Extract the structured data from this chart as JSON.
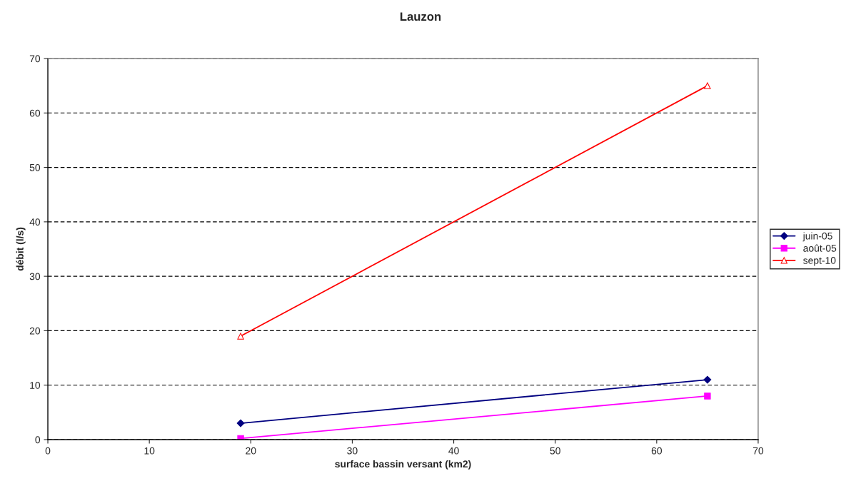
{
  "chart_data": {
    "type": "line",
    "title": "Lauzon",
    "xlabel": "surface bassin versant (km2)",
    "ylabel": "débit (l/s)",
    "x": [
      19,
      65
    ],
    "series": [
      {
        "name": "juin-05",
        "color": "#000080",
        "values": [
          3,
          11
        ],
        "marker": "diamond"
      },
      {
        "name": "août-05",
        "color": "#ff00ff",
        "values": [
          0.2,
          8
        ],
        "marker": "square"
      },
      {
        "name": "sept-10",
        "color": "#ff0000",
        "values": [
          19,
          65
        ],
        "marker": "triangle"
      }
    ],
    "xlim": [
      0,
      70
    ],
    "xticks": [
      0,
      10,
      20,
      30,
      40,
      50,
      60,
      70
    ],
    "ylim": [
      0,
      70
    ],
    "yticks": [
      0,
      10,
      20,
      30,
      40,
      50,
      60,
      70
    ],
    "grid": "y",
    "line_style": "solid",
    "legend": "right"
  }
}
